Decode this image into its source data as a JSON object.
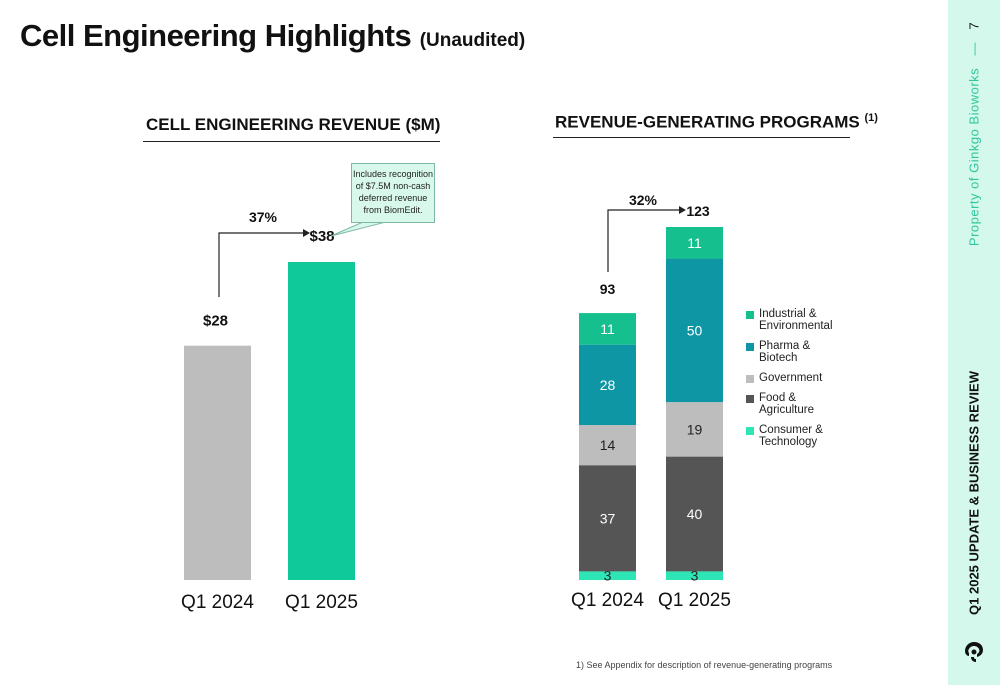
{
  "header": {
    "title": "Cell Engineering Highlights",
    "subtitle": "(Unaudited)"
  },
  "chart_data": [
    {
      "type": "bar",
      "title": "CELL ENGINEERING REVENUE ($M)",
      "categories": [
        "Q1 2024",
        "Q1 2025"
      ],
      "values": [
        28,
        38
      ],
      "value_labels": [
        "$28",
        "$38"
      ],
      "colors": [
        "#bdbdbd",
        "#10c99a"
      ],
      "ylim": [
        0,
        38
      ],
      "growth_label": "37%",
      "callout": "Includes recognition of $7.5M non-cash deferred revenue from BiomEdit.",
      "callout_lines": [
        "Includes recognition",
        "of $7.5M non-cash",
        "deferred revenue",
        "from BiomEdit."
      ]
    },
    {
      "type": "bar",
      "stacked": true,
      "title": "REVENUE-GENERATING PROGRAMS",
      "title_superscript": "(1)",
      "categories": [
        "Q1 2024",
        "Q1 2025"
      ],
      "series": [
        {
          "name": "Consumer & Technology",
          "color": "#2ee5b5",
          "values": [
            3,
            3
          ]
        },
        {
          "name": "Food & Agriculture",
          "color": "#555555",
          "values": [
            37,
            40
          ]
        },
        {
          "name": "Government",
          "color": "#bdbdbd",
          "values": [
            14,
            19
          ]
        },
        {
          "name": "Pharma & Biotech",
          "color": "#0e96a4",
          "values": [
            28,
            50
          ]
        },
        {
          "name": "Industrial & Environmental",
          "color": "#15c08e",
          "values": [
            11,
            11
          ]
        }
      ],
      "totals": [
        93,
        123
      ],
      "ylim": [
        0,
        123
      ],
      "growth_label": "32%",
      "legend": {
        "position": "right",
        "items": [
          {
            "label": "Industrial & Environmental",
            "lines": [
              "Industrial &",
              "Environmental"
            ],
            "color": "#15c08e"
          },
          {
            "label": "Pharma & Biotech",
            "lines": [
              "Pharma &",
              "Biotech"
            ],
            "color": "#0e96a4"
          },
          {
            "label": "Government",
            "lines": [
              "Government"
            ],
            "color": "#bdbdbd"
          },
          {
            "label": "Food & Agriculture",
            "lines": [
              "Food &",
              "Agriculture"
            ],
            "color": "#555555"
          },
          {
            "label": "Consumer & Technology",
            "lines": [
              "Consumer &",
              "Technology"
            ],
            "color": "#2ee5b5"
          }
        ]
      }
    }
  ],
  "footnote": "1)    See Appendix for description of revenue-generating programs",
  "sidebar": {
    "page_number": "7",
    "property_text": "Property of Ginkgo Bioworks",
    "report_title": "Q1 2025 UPDATE & BUSINESS REVIEW",
    "logo_icon": "ginkgo-logo-icon",
    "accent_color": "#2ec79c",
    "background_color": "#d4f8ec"
  }
}
